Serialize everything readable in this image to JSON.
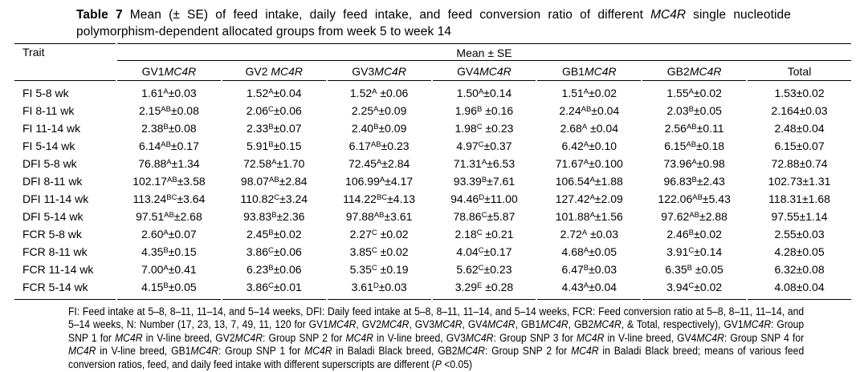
{
  "title": {
    "rich": "**Table 7** Mean (± SE) of feed intake, daily feed intake, and feed conversion ratio of different *MC4R* single nucleotide polymorphism-dependent allocated groups from week 5 to week 14"
  },
  "table": {
    "trait_header": "Trait",
    "span_header": "Mean ± SE",
    "group_headers": [
      "GV1*MC4R*",
      "GV2 *MC4R*",
      "GV3*MC4R*",
      "GV4*MC4R*",
      "GB1*MC4R*",
      "GB2*MC4R*",
      "Total"
    ],
    "rows": [
      {
        "label": "FI 5-8 wk",
        "cells": [
          "1.61^A^±0.03",
          "1.52^A^±0.04",
          "1.52^A^ ±0.06",
          "1.50^A^±0.14",
          "1.51^A^±0.02",
          "1.55^A^±0.02",
          "1.53±0.02"
        ]
      },
      {
        "label": "FI 8-11 wk",
        "cells": [
          "2.15^AB^±0.08",
          "2.06^C^±0.06",
          "2.25^A^±0.09",
          "1.96^B^ ±0.16",
          "2.24^AB^±0.04",
          "2.03^B^±0.05",
          "2.164±0.03"
        ]
      },
      {
        "label": "FI 11-14 wk",
        "cells": [
          "2.38^B^±0.08",
          "2.33^B^±0.07",
          "2.40^B^±0.09",
          "1.98^C^ ±0.23",
          "2.68^A^ ±0.04",
          "2.56^AB^±0.11",
          "2.48±0.04"
        ]
      },
      {
        "label": "FI 5-14 wk",
        "cells": [
          "6.14^AB^±0.17",
          "5.91^B^±0.15",
          "6.17^AB^±0.23",
          "4.97^C^±0.37",
          "6.42^A^±0.10",
          "6.15^AB^±0.18",
          "6.15±0.07"
        ]
      },
      {
        "label": "DFI 5-8 wk",
        "cells": [
          "76.88^A^±1.34",
          "72.58^A^±1.70",
          "72.45^A^±2.84",
          "71.31^A^±6.53",
          "71.67^A^±0.100",
          "73.96^A^±0.98",
          "72.88±0.74"
        ]
      },
      {
        "label": "DFI 8-11 wk",
        "cells": [
          "102.17^AB^±3.58",
          "98.07^AB^±2.84",
          "106.99^A^±4.17",
          "93.39^B^±7.61",
          "106.54^A^±1.88",
          "96.83^B^±2.43",
          "102.73±1.31"
        ]
      },
      {
        "label": "DFI 11-14 wk",
        "cells": [
          "113.24^BC^±3.64",
          "110.82^C^±3.24",
          "114.22^BC^±4.13",
          "94.46^D^±11.00",
          "127.42^A^±2.09",
          "122.06^AB^±5.43",
          "118.31±1.68"
        ]
      },
      {
        "label": "DFI 5-14 wk",
        "cells": [
          "97.51^AB^±2.68",
          "93.83^B^±2.36",
          "97.88^AB^±3.61",
          "78.86^C^±5.87",
          "101.88^A^±1.56",
          "97.62^AB^±2.88",
          "97.55±1.14"
        ]
      },
      {
        "label": "FCR 5-8 wk",
        "cells": [
          "2.60^A^±0.07",
          "2.45^B^±0.02",
          "2.27^C^ ±0.02",
          "2.18^C^ ±0.21",
          "2.72^A^ ±0.03",
          "2.46^B^±0.02",
          "2.55±0.03"
        ]
      },
      {
        "label": "FCR 8-11 wk",
        "cells": [
          "4.35^B^±0.15",
          "3.86^C^±0.06",
          "3.85^C^ ±0.02",
          "4.04^C^±0.17",
          "4.68^A^±0.05",
          "3.91^C^±0.14",
          "4.28±0.05"
        ]
      },
      {
        "label": "FCR 11-14 wk",
        "cells": [
          "7.00^A^±0.41",
          "6.23^B^±0.06",
          "5.35^C^ ±0.19",
          "5.62^C^±0.23",
          "6.47^B^±0.03",
          "6.35^B^ ±0.05",
          "6.32±0.08"
        ]
      },
      {
        "label": "FCR 5-14 wk",
        "cells": [
          "4.15^B^±0.05",
          "3.86^C^±0.01",
          "3.61^D^±0.03",
          "3.29^E^ ±0.28",
          "4.43^A^±0.04",
          "3.94^C^±0.02",
          "4.08±0.04"
        ]
      }
    ]
  },
  "footnote": {
    "rich": "FI: Feed intake at 5–8, 8–11, 11–14, and 5–14 weeks, DFI: Daily feed intake at 5–8, 8–11, 11–14, and 5–14 weeks, FCR: Feed conversion ratio at 5–8, 8–11, 11–14, and 5–14 weeks, N: Number (17, 23, 13, 7, 49, 11, 120 for GV1*MC4R*, GV2*MC4R*, GV3*MC4R*, GV4*MC4R*, GB1*MC4R*, GB2*MC4R*, & Total, respectively), GV1*MC4R*: Group SNP 1 for *MC4R* in V-line breed, GV2*MC4R*: Group SNP 2 for *MC4R* in V-line breed, GV3*MC4R*: Group SNP 3 for *MC4R* in V-line breed, GV4*MC4R*: Group SNP 4 for *MC4R* in V-line breed, GB1*MC4R*: Group SNP 1 for *MC4R* in Baladi Black breed, GB2*MC4R*: Group SNP 2 for *MC4R* in Baladi Black breed; means of various feed conversion ratios, feed, and daily feed intake with different superscripts are different (*P* <0.05)"
  }
}
